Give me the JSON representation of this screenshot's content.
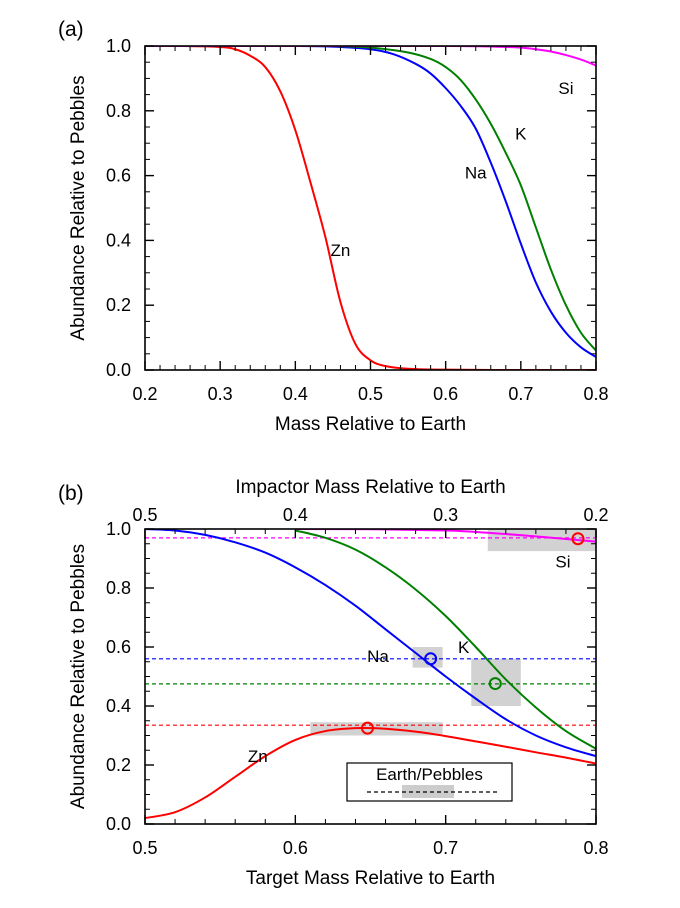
{
  "chart_data": [
    {
      "panel_label": "(a)",
      "type": "line",
      "xlabel": "Mass Relative to Earth",
      "ylabel": "Abundance Relative to Pebbles",
      "xlim": [
        0.2,
        0.8
      ],
      "ylim": [
        0.0,
        1.0
      ],
      "xticks": [
        "0.2",
        "0.3",
        "0.4",
        "0.5",
        "0.6",
        "0.7",
        "0.8"
      ],
      "yticks": [
        "0.0",
        "0.2",
        "0.4",
        "0.6",
        "0.8",
        "1.0"
      ],
      "series": [
        {
          "name": "Zn",
          "color": "#ff0000",
          "x": [
            0.2,
            0.25,
            0.3,
            0.32,
            0.34,
            0.36,
            0.38,
            0.4,
            0.42,
            0.44,
            0.46,
            0.48,
            0.5,
            0.52,
            0.55,
            0.6,
            0.7,
            0.8
          ],
          "y": [
            1.0,
            1.0,
            0.997,
            0.99,
            0.97,
            0.935,
            0.86,
            0.74,
            0.58,
            0.41,
            0.21,
            0.08,
            0.03,
            0.012,
            0.004,
            0.001,
            0.0,
            0.0
          ]
        },
        {
          "name": "Na",
          "color": "#0000ff",
          "x": [
            0.2,
            0.3,
            0.4,
            0.45,
            0.5,
            0.53,
            0.56,
            0.58,
            0.6,
            0.62,
            0.64,
            0.66,
            0.68,
            0.7,
            0.72,
            0.74,
            0.76,
            0.78,
            0.8
          ],
          "y": [
            1.0,
            1.0,
            1.0,
            0.998,
            0.99,
            0.975,
            0.945,
            0.915,
            0.87,
            0.815,
            0.745,
            0.64,
            0.52,
            0.39,
            0.27,
            0.18,
            0.115,
            0.07,
            0.04
          ]
        },
        {
          "name": "K",
          "color": "#008000",
          "x": [
            0.2,
            0.3,
            0.4,
            0.45,
            0.5,
            0.55,
            0.58,
            0.6,
            0.62,
            0.64,
            0.66,
            0.68,
            0.7,
            0.72,
            0.74,
            0.76,
            0.78,
            0.8
          ],
          "y": [
            1.0,
            1.0,
            1.0,
            1.0,
            0.995,
            0.98,
            0.96,
            0.935,
            0.895,
            0.835,
            0.76,
            0.67,
            0.57,
            0.44,
            0.31,
            0.2,
            0.115,
            0.06
          ]
        },
        {
          "name": "Si",
          "color": "#ff00ff",
          "x": [
            0.2,
            0.5,
            0.6,
            0.65,
            0.7,
            0.72,
            0.74,
            0.76,
            0.78,
            0.8
          ],
          "y": [
            1.0,
            1.0,
            1.0,
            0.999,
            0.995,
            0.99,
            0.983,
            0.972,
            0.958,
            0.94
          ]
        }
      ],
      "curve_labels": [
        {
          "text": "Zn",
          "x": 0.46,
          "y": 0.37
        },
        {
          "text": "Na",
          "x": 0.64,
          "y": 0.61
        },
        {
          "text": "K",
          "x": 0.7,
          "y": 0.73
        },
        {
          "text": "Si",
          "x": 0.76,
          "y": 0.87
        }
      ]
    },
    {
      "panel_label": "(b)",
      "type": "line",
      "xlabel": "Target Mass Relative to Earth",
      "x2label": "Impactor Mass Relative to Earth",
      "ylabel": "Abundance Relative to Pebbles",
      "xlim": [
        0.5,
        0.8
      ],
      "ylim": [
        0.0,
        1.0
      ],
      "xticks": [
        "0.5",
        "0.6",
        "0.7",
        "0.8"
      ],
      "x2ticks": [
        {
          "label": "0.5",
          "x": 0.5
        },
        {
          "label": "0.4",
          "x": 0.6
        },
        {
          "label": "0.3",
          "x": 0.7
        },
        {
          "label": "0.2",
          "x": 0.8
        }
      ],
      "yticks": [
        "0.0",
        "0.2",
        "0.4",
        "0.6",
        "0.8",
        "1.0"
      ],
      "series": [
        {
          "name": "Zn",
          "color": "#ff0000",
          "x": [
            0.5,
            0.52,
            0.54,
            0.56,
            0.58,
            0.6,
            0.62,
            0.64,
            0.66,
            0.68,
            0.7,
            0.72,
            0.74,
            0.76,
            0.78,
            0.8
          ],
          "y": [
            0.02,
            0.04,
            0.09,
            0.16,
            0.23,
            0.285,
            0.315,
            0.325,
            0.323,
            0.313,
            0.298,
            0.28,
            0.262,
            0.243,
            0.225,
            0.205
          ]
        },
        {
          "name": "Na",
          "color": "#0000ff",
          "x": [
            0.5,
            0.52,
            0.54,
            0.56,
            0.58,
            0.6,
            0.62,
            0.64,
            0.66,
            0.68,
            0.7,
            0.72,
            0.74,
            0.76,
            0.78,
            0.8
          ],
          "y": [
            1.0,
            0.995,
            0.98,
            0.955,
            0.92,
            0.87,
            0.81,
            0.74,
            0.66,
            0.58,
            0.5,
            0.425,
            0.355,
            0.3,
            0.26,
            0.23
          ]
        },
        {
          "name": "K",
          "color": "#008000",
          "x": [
            0.6,
            0.62,
            0.64,
            0.66,
            0.68,
            0.7,
            0.72,
            0.74,
            0.76,
            0.78,
            0.8
          ],
          "y": [
            0.995,
            0.97,
            0.93,
            0.87,
            0.795,
            0.705,
            0.6,
            0.49,
            0.395,
            0.315,
            0.255
          ]
        },
        {
          "name": "Si",
          "color": "#ff00ff",
          "x": [
            0.6,
            0.65,
            0.7,
            0.72,
            0.74,
            0.76,
            0.78,
            0.8
          ],
          "y": [
            1.0,
            0.999,
            0.995,
            0.99,
            0.983,
            0.975,
            0.966,
            0.957
          ]
        }
      ],
      "reference_lines": [
        {
          "element": "Si",
          "color": "#ff00ff",
          "y": 0.97
        },
        {
          "element": "Na",
          "color": "#0000ff",
          "y": 0.56
        },
        {
          "element": "K",
          "color": "#008000",
          "y": 0.475
        },
        {
          "element": "Zn",
          "color": "#ff0000",
          "y": 0.335
        }
      ],
      "markers": [
        {
          "element": "Si",
          "color": "#ff0000",
          "x": 0.788,
          "y": 0.967
        },
        {
          "element": "Na",
          "color": "#0000ff",
          "x": 0.69,
          "y": 0.56
        },
        {
          "element": "K",
          "color": "#008000",
          "x": 0.733,
          "y": 0.476
        },
        {
          "element": "Zn",
          "color": "#ff0000",
          "x": 0.648,
          "y": 0.325
        }
      ],
      "uncertainty_boxes": [
        {
          "element": "Si",
          "x": [
            0.728,
            0.8
          ],
          "y": [
            0.925,
            1.01
          ]
        },
        {
          "element": "Na",
          "x": [
            0.678,
            0.698
          ],
          "y": [
            0.53,
            0.6
          ]
        },
        {
          "element": "K",
          "x": [
            0.717,
            0.75
          ],
          "y": [
            0.4,
            0.56
          ]
        },
        {
          "element": "Zn",
          "x": [
            0.61,
            0.698
          ],
          "y": [
            0.3,
            0.345
          ]
        }
      ],
      "curve_labels": [
        {
          "text": "Si",
          "x": 0.778,
          "y": 0.89
        },
        {
          "text": "Na",
          "x": 0.655,
          "y": 0.57
        },
        {
          "text": "K",
          "x": 0.712,
          "y": 0.6
        },
        {
          "text": "Zn",
          "x": 0.575,
          "y": 0.23
        }
      ],
      "legend": {
        "title": "Earth/Pebbles",
        "placement": "bottom-right"
      }
    }
  ]
}
